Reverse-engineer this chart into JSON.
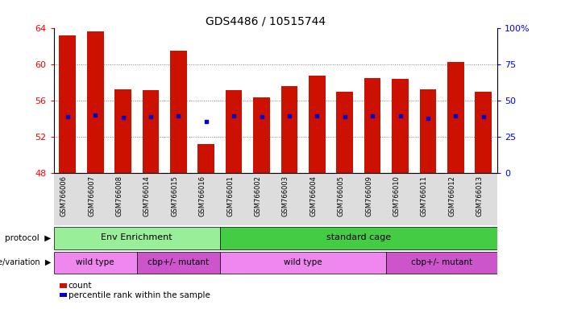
{
  "title": "GDS4486 / 10515744",
  "samples": [
    "GSM766006",
    "GSM766007",
    "GSM766008",
    "GSM766014",
    "GSM766015",
    "GSM766016",
    "GSM766001",
    "GSM766002",
    "GSM766003",
    "GSM766004",
    "GSM766005",
    "GSM766009",
    "GSM766010",
    "GSM766011",
    "GSM766012",
    "GSM766013"
  ],
  "bar_tops": [
    63.2,
    63.6,
    57.2,
    57.1,
    61.5,
    51.2,
    57.1,
    56.3,
    57.6,
    58.7,
    57.0,
    58.5,
    58.4,
    57.2,
    60.2,
    57.0
  ],
  "bar_bottom": 48,
  "blue_values": [
    54.2,
    54.4,
    54.1,
    54.2,
    54.3,
    53.7,
    54.3,
    54.2,
    54.3,
    54.3,
    54.2,
    54.3,
    54.3,
    54.0,
    54.3,
    54.2
  ],
  "bar_color": "#cc1100",
  "blue_color": "#0000cc",
  "ylim_left": [
    48,
    64
  ],
  "ylim_right": [
    0,
    100
  ],
  "yticks_left": [
    48,
    52,
    56,
    60,
    64
  ],
  "yticks_right": [
    0,
    25,
    50,
    75,
    100
  ],
  "ytick_labels_right": [
    "0",
    "25",
    "50",
    "75",
    "100%"
  ],
  "protocol_groups": [
    {
      "label": "Env Enrichment",
      "start": 0,
      "end": 5,
      "color": "#99ee99"
    },
    {
      "label": "standard cage",
      "start": 6,
      "end": 15,
      "color": "#44cc44"
    }
  ],
  "genotype_groups": [
    {
      "label": "wild type",
      "start": 0,
      "end": 2,
      "color": "#ee88ee"
    },
    {
      "label": "cbp+/- mutant",
      "start": 3,
      "end": 5,
      "color": "#cc55cc"
    },
    {
      "label": "wild type",
      "start": 6,
      "end": 11,
      "color": "#ee88ee"
    },
    {
      "label": "cbp+/- mutant",
      "start": 12,
      "end": 15,
      "color": "#cc55cc"
    }
  ],
  "protocol_label": "protocol",
  "genotype_label": "genotype/variation",
  "legend_count": "count",
  "legend_percentile": "percentile rank within the sample",
  "grid_color": "#888888",
  "xlabel_bg": "#dddddd"
}
